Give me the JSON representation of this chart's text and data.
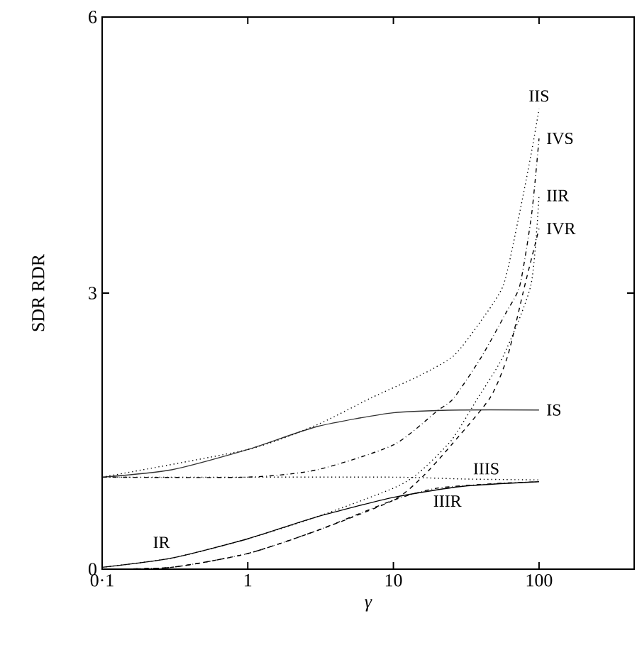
{
  "chart_data": {
    "type": "line",
    "xlabel": "γ",
    "ylabel": "SDR RDR",
    "log": "x",
    "xlim": [
      0.1,
      450
    ],
    "ylim": [
      0,
      6
    ],
    "xticks": [
      {
        "value": 0.1,
        "label": "0·1"
      },
      1,
      10,
      100
    ],
    "yticks": [
      0,
      3,
      6
    ],
    "grid": false,
    "marker": "none",
    "series": [
      {
        "color": "#333333",
        "line_style": "solid",
        "x": [
          0.1,
          0.3,
          1,
          3,
          10,
          30,
          100
        ],
        "values": [
          1.0,
          1.08,
          1.3,
          1.55,
          1.7,
          1.73,
          1.73
        ]
      },
      {
        "color": "#000000",
        "line_style": "dotted",
        "x": [
          0.1,
          1,
          3,
          7,
          15,
          26,
          40,
          57,
          72,
          88,
          100
        ],
        "values": [
          1.0,
          1.3,
          1.57,
          1.86,
          2.1,
          2.32,
          2.7,
          3.09,
          3.8,
          4.5,
          5.0
        ]
      },
      {
        "color": "#000000",
        "line_style": "dotted",
        "x": [
          0.1,
          1,
          10,
          30,
          100
        ],
        "values": [
          1.0,
          1.0,
          1.0,
          0.98,
          0.97
        ]
      },
      {
        "color": "#000000",
        "line_style": "dashdot",
        "x": [
          0.1,
          1,
          3,
          10,
          20,
          26,
          40,
          60,
          74,
          89,
          100
        ],
        "values": [
          1.0,
          1.0,
          1.08,
          1.35,
          1.72,
          1.86,
          2.3,
          2.8,
          3.09,
          3.86,
          4.68
        ]
      },
      {
        "color": "#000000",
        "line_style": "solid",
        "x": [
          0.1,
          0.3,
          1,
          3,
          10,
          30,
          100
        ],
        "values": [
          0.02,
          0.12,
          0.33,
          0.57,
          0.78,
          0.9,
          0.95
        ]
      },
      {
        "color": "#000000",
        "line_style": "dotted",
        "x": [
          0.1,
          0.3,
          1,
          3,
          10,
          15,
          25,
          38,
          57,
          88,
          100
        ],
        "values": [
          0.02,
          0.12,
          0.33,
          0.57,
          0.88,
          1.05,
          1.4,
          1.86,
          2.32,
          3.09,
          4.06
        ]
      },
      {
        "color": "#000000",
        "line_style": "dashdot",
        "x": [
          0.1,
          0.3,
          1,
          3,
          10,
          20,
          50,
          100
        ],
        "values": [
          0.0,
          0.02,
          0.17,
          0.42,
          0.75,
          0.88,
          0.93,
          0.95
        ]
      },
      {
        "color": "#000000",
        "line_style": "dashed",
        "x": [
          0.1,
          0.3,
          1,
          3,
          10,
          16,
          25,
          46,
          61,
          80,
          100
        ],
        "values": [
          0.0,
          0.02,
          0.17,
          0.42,
          0.75,
          1.01,
          1.35,
          1.86,
          2.32,
          3.09,
          3.7
        ]
      }
    ],
    "annotations": [
      {
        "text": "IS",
        "x": 100,
        "y": 1.73
      },
      {
        "text": "IIS",
        "x": 100,
        "y": 5.0
      },
      {
        "text": "IIIS",
        "x": 30,
        "y": 0.98
      },
      {
        "text": "IVS",
        "x": 100,
        "y": 4.68
      },
      {
        "text": "IR",
        "x": 0.3,
        "y": 0.12
      },
      {
        "text": "IIR",
        "x": 100,
        "y": 4.06
      },
      {
        "text": "IIIR",
        "x": 20,
        "y": 0.88
      },
      {
        "text": "IVR",
        "x": 100,
        "y": 3.7
      }
    ]
  }
}
